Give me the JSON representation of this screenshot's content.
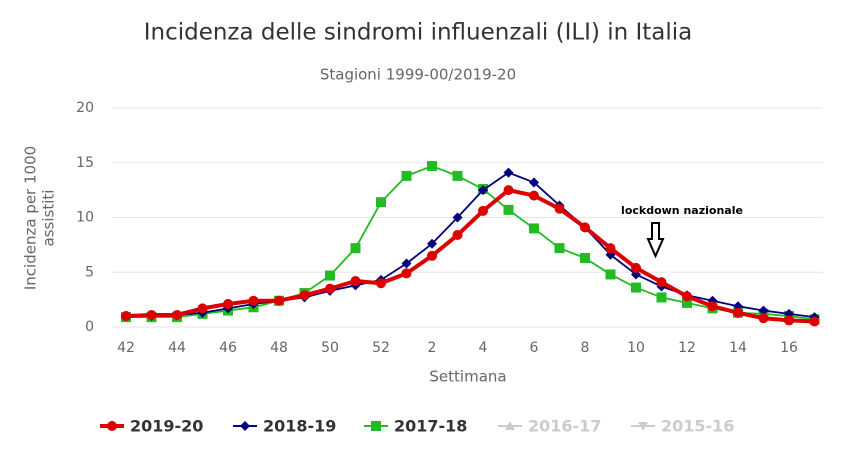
{
  "chart_data": {
    "type": "line",
    "title": "Incidenza delle sindromi influenzali (ILI) in Italia",
    "subtitle": "Stagioni 1999-00/2019-20",
    "x_label": "Settimana",
    "y_label": [
      "Incidenza per 1000",
      "assistiti"
    ],
    "categories": [
      "42",
      null,
      "44",
      null,
      "46",
      null,
      "48",
      null,
      "50",
      null,
      "52",
      null,
      "2",
      null,
      "4",
      null,
      "6",
      null,
      "8",
      null,
      "10",
      null,
      "12",
      null,
      "14",
      null,
      "16",
      null
    ],
    "ylim": [
      0,
      20
    ],
    "yticks": [
      0,
      5,
      10,
      15,
      20
    ],
    "grid": true,
    "annotation": {
      "text": "lockdown nazionale"
    },
    "series": [
      {
        "name": "2019-20",
        "color": "#dd0000",
        "marker": "circle",
        "values": [
          1.0,
          1.1,
          1.1,
          1.7,
          2.1,
          2.4,
          2.4,
          2.9,
          3.5,
          4.2,
          4.0,
          4.9,
          6.5,
          8.4,
          10.6,
          12.5,
          12.0,
          10.8,
          9.1,
          7.2,
          5.4,
          4.1,
          2.8,
          1.9,
          1.3,
          0.8,
          0.6,
          0.5
        ]
      },
      {
        "name": "2018-19",
        "color": "#000080",
        "marker": "diamond",
        "values": [
          1.0,
          1.0,
          1.1,
          1.3,
          1.7,
          2.1,
          2.4,
          2.7,
          3.3,
          3.8,
          4.3,
          5.8,
          7.6,
          10.0,
          12.5,
          14.1,
          13.2,
          11.1,
          9.1,
          6.6,
          4.8,
          3.7,
          2.9,
          2.4,
          1.9,
          1.5,
          1.2,
          0.9
        ]
      },
      {
        "name": "2017-18",
        "color": "#22bb22",
        "marker": "square",
        "values": [
          0.9,
          0.9,
          0.9,
          1.2,
          1.5,
          1.8,
          2.4,
          3.1,
          4.7,
          7.2,
          11.4,
          13.8,
          14.7,
          13.8,
          12.6,
          10.7,
          9.0,
          7.2,
          6.3,
          4.8,
          3.6,
          2.7,
          2.2,
          1.7,
          1.3,
          1.2,
          1.0,
          0.7
        ]
      },
      {
        "name": "2016-17",
        "color": "#cccccc",
        "marker": "triangle",
        "visible": false
      },
      {
        "name": "2015-16",
        "color": "#cccccc",
        "marker": "triangle-down",
        "visible": false
      }
    ]
  }
}
